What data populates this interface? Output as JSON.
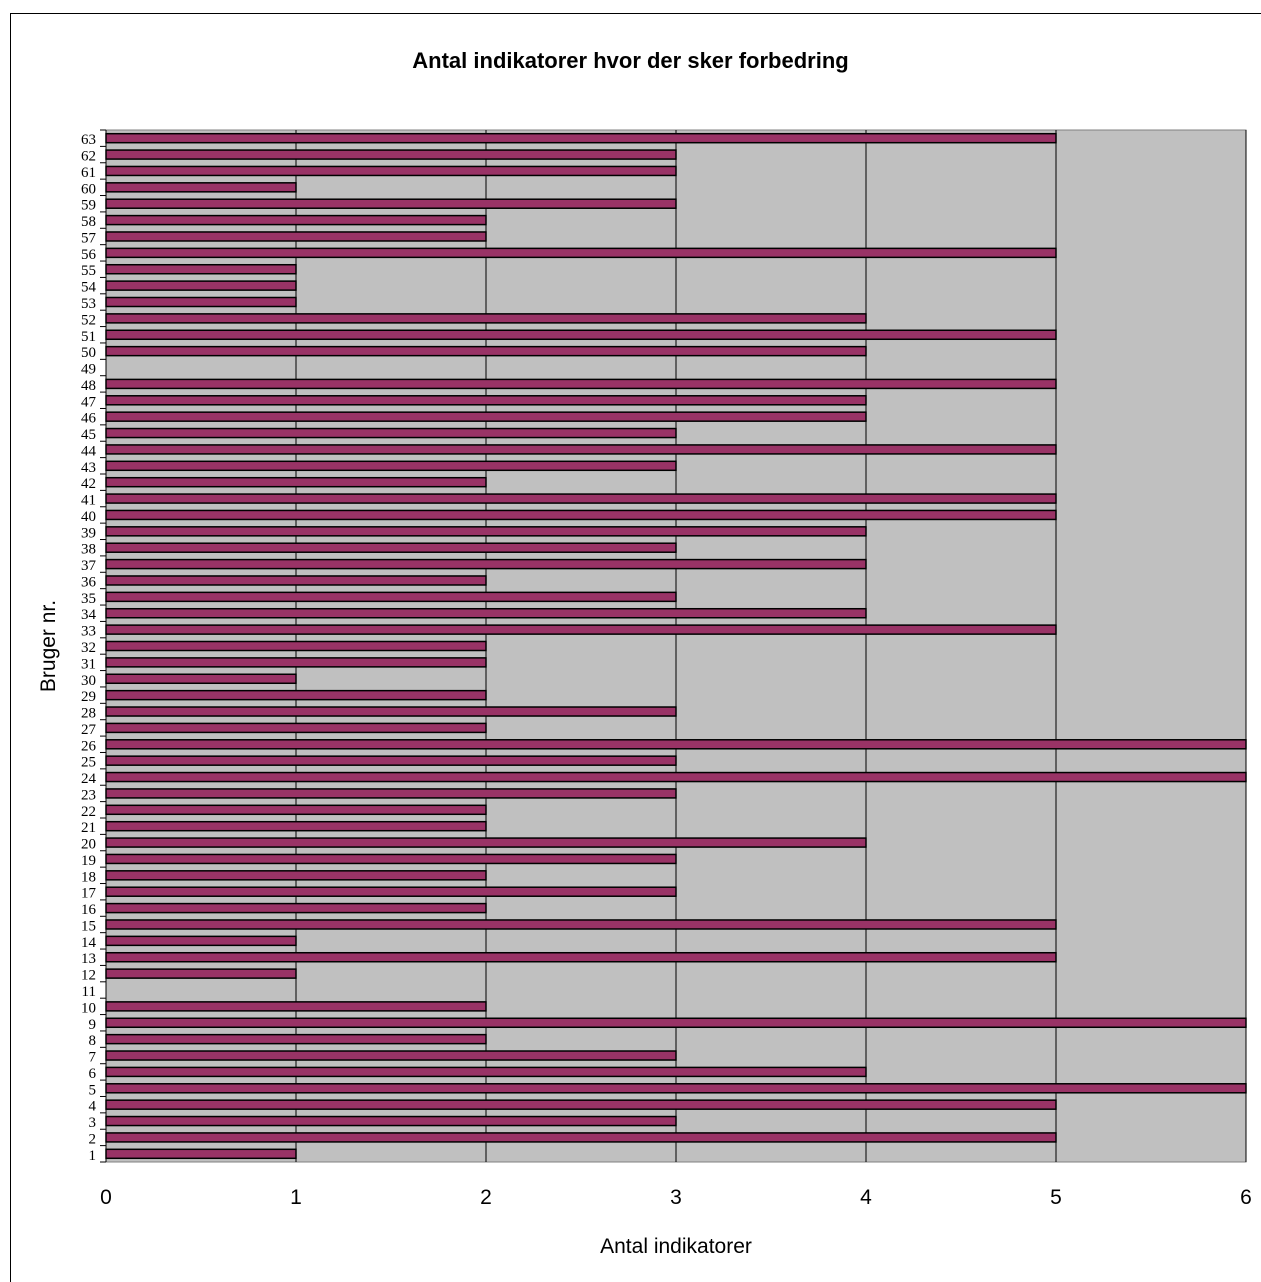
{
  "chart_data": {
    "type": "bar",
    "orientation": "horizontal",
    "title": "Antal indikatorer hvor der sker forbedring",
    "xlabel": "Antal indikatorer",
    "ylabel": "Bruger nr.",
    "xlim": [
      0,
      6
    ],
    "xticks": [
      "0",
      "1",
      "2",
      "3",
      "4",
      "5",
      "6"
    ],
    "grid": true,
    "legend": "none",
    "categories": [
      "1",
      "2",
      "3",
      "4",
      "5",
      "6",
      "7",
      "8",
      "9",
      "10",
      "11",
      "12",
      "13",
      "14",
      "15",
      "16",
      "17",
      "18",
      "19",
      "20",
      "21",
      "22",
      "23",
      "24",
      "25",
      "26",
      "27",
      "28",
      "29",
      "30",
      "31",
      "32",
      "33",
      "34",
      "35",
      "36",
      "37",
      "38",
      "39",
      "40",
      "41",
      "42",
      "43",
      "44",
      "45",
      "46",
      "47",
      "48",
      "49",
      "50",
      "51",
      "52",
      "53",
      "54",
      "55",
      "56",
      "57",
      "58",
      "59",
      "60",
      "61",
      "62",
      "63"
    ],
    "values": [
      1,
      5,
      3,
      5,
      6,
      4,
      3,
      2,
      6,
      2,
      0,
      1,
      5,
      1,
      5,
      2,
      3,
      2,
      3,
      4,
      2,
      2,
      3,
      6,
      3,
      6,
      2,
      3,
      2,
      1,
      2,
      2,
      5,
      4,
      3,
      2,
      4,
      3,
      4,
      5,
      5,
      2,
      3,
      5,
      3,
      4,
      4,
      5,
      0,
      4,
      5,
      4,
      1,
      1,
      1,
      5,
      2,
      2,
      3,
      1,
      3,
      3,
      5
    ],
    "colors": {
      "bar": "#993366",
      "plot_background": "#c0c0c0",
      "grid": "#000000"
    }
  }
}
